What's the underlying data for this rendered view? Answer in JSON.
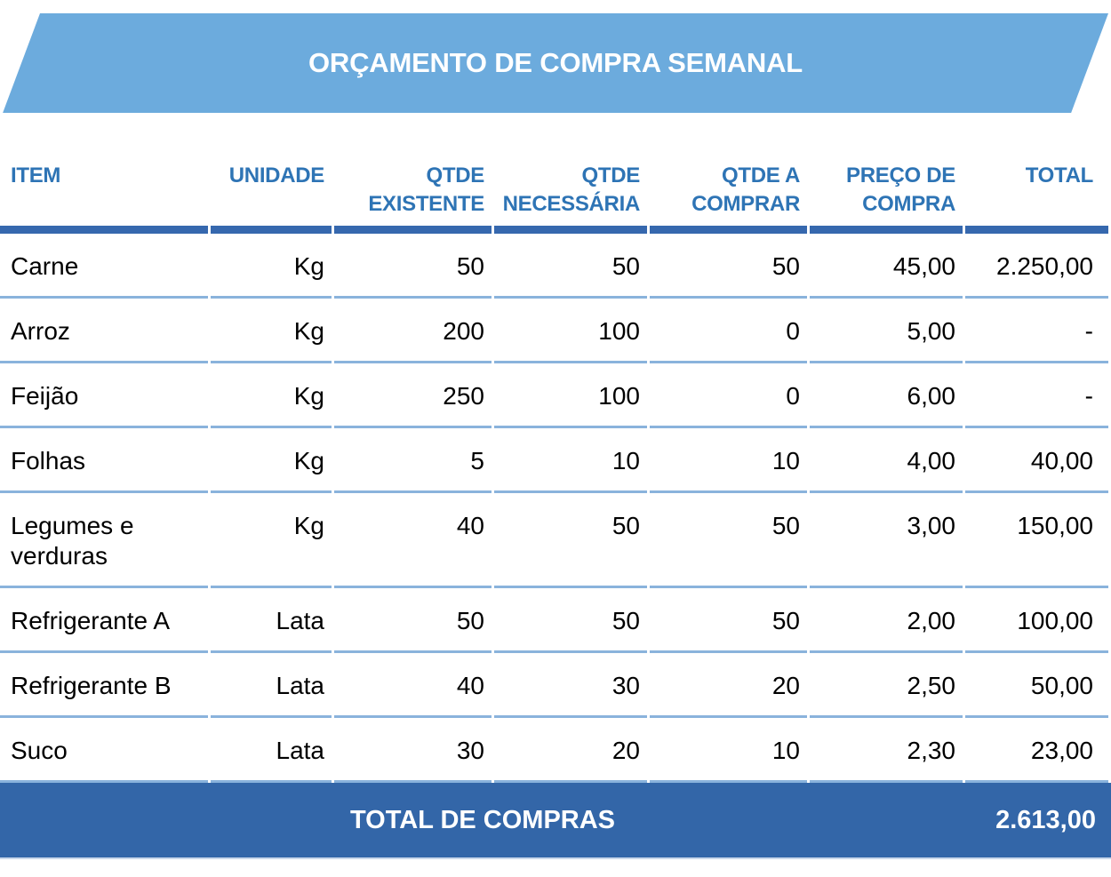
{
  "page_title": "ORÇAMENTO DE COMPRA SEMANAL",
  "colors": {
    "banner_blue": "#6CABDD",
    "header_text_blue": "#2E74B5",
    "header_border_blue": "#3668AE",
    "row_separator_blue": "#8AB3DC",
    "total_bar_blue": "#3366A8",
    "body_text": "#000000",
    "banner_text": "#FFFFFF"
  },
  "chart_data": {
    "type": "table",
    "title": "ORÇAMENTO DE COMPRA SEMANAL",
    "columns": [
      "ITEM",
      "UNIDADE",
      "QTDE EXISTENTE",
      "QTDE NECESSÁRIA",
      "QTDE A COMPRAR",
      "PREÇO DE COMPRA",
      "TOTAL"
    ],
    "column_keys": [
      "item",
      "unidade",
      "qtde-existente",
      "qtde-necessaria",
      "qtde-a-comprar",
      "preco-de-compra",
      "total"
    ],
    "rows": [
      [
        "Carne",
        "Kg",
        "50",
        "50",
        "50",
        "45,00",
        "2.250,00"
      ],
      [
        "Arroz",
        "Kg",
        "200",
        "100",
        "0",
        "5,00",
        "-"
      ],
      [
        "Feijão",
        "Kg",
        "250",
        "100",
        "0",
        "6,00",
        "-"
      ],
      [
        "Folhas",
        "Kg",
        "5",
        "10",
        "10",
        "4,00",
        "40,00"
      ],
      [
        "Legumes e verduras",
        "Kg",
        "40",
        "50",
        "50",
        "3,00",
        "150,00"
      ],
      [
        "Refrigerante A",
        "Lata",
        "50",
        "50",
        "50",
        "2,00",
        "100,00"
      ],
      [
        "Refrigerante B",
        "Lata",
        "40",
        "30",
        "20",
        "2,50",
        "50,00"
      ],
      [
        "Suco",
        "Lata",
        "30",
        "20",
        "10",
        "2,30",
        "23,00"
      ]
    ],
    "footer": {
      "label": "TOTAL DE COMPRAS",
      "value": "2.613,00"
    }
  }
}
